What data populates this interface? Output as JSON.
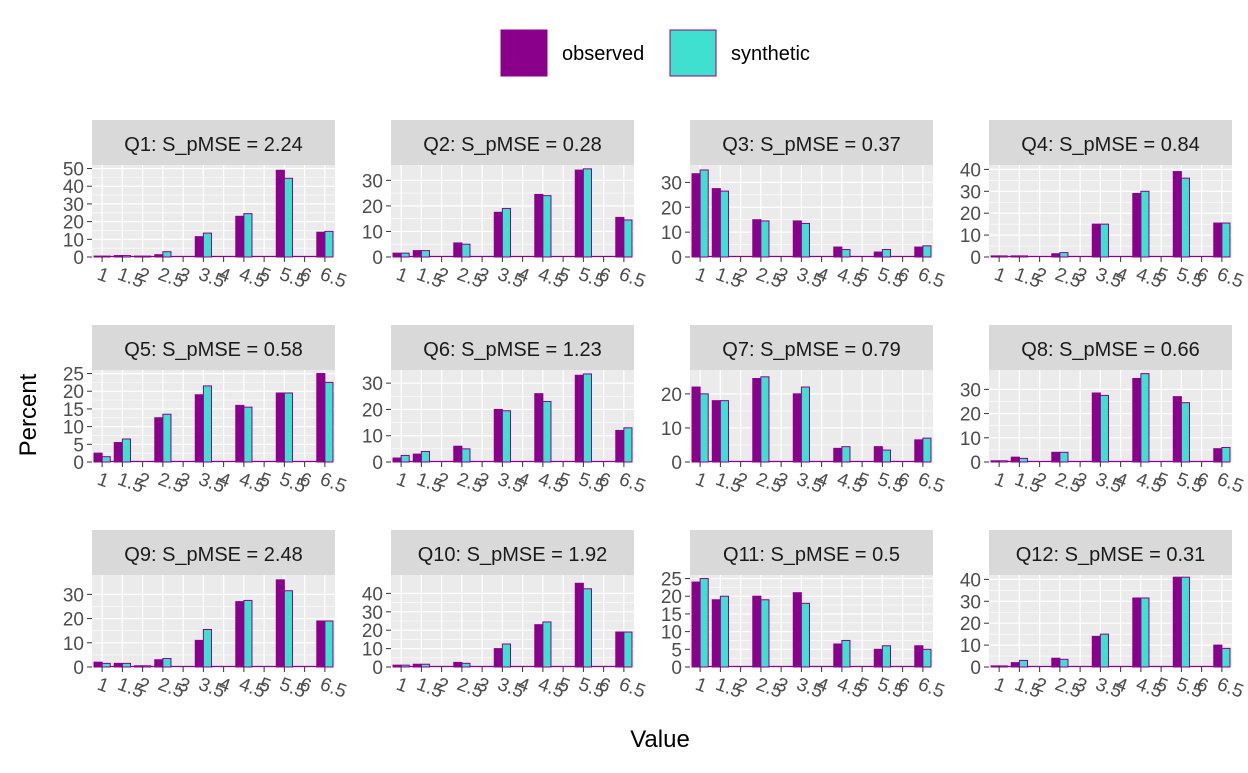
{
  "legend": {
    "position": "top",
    "items": [
      {
        "label": "observed",
        "color": "#8B008B"
      },
      {
        "label": "synthetic",
        "color": "#40E0D0"
      }
    ]
  },
  "xlabel": "Value",
  "ylabel": "Percent",
  "chart_data": {
    "type": "bar",
    "facet_layout": "3 rows x 4 columns",
    "x_ticks": [
      "1",
      "1.5",
      "2",
      "2.5",
      "3",
      "3.5",
      "4",
      "4.5",
      "5",
      "5.5",
      "6",
      "6.5"
    ],
    "x": [
      1,
      1.5,
      2,
      2.5,
      3,
      3.5,
      4,
      4.5,
      5,
      5.5,
      6,
      6.5
    ],
    "series_names": [
      "observed",
      "synthetic"
    ],
    "colors": {
      "observed": "#8B008B",
      "synthetic": "#40E0D0",
      "bar_outline": "#8B008B",
      "panel_bg": "#EBEBEB",
      "strip_bg": "#D9D9D9"
    },
    "grid": true,
    "panels": [
      {
        "title": "Q1: S_pMSE = 2.24",
        "ylim": [
          0,
          52
        ],
        "yticks": [
          0,
          10,
          20,
          30,
          40,
          50
        ],
        "observed": [
          0.5,
          0.8,
          0.5,
          1.3,
          11.5,
          23,
          0,
          49,
          0,
          14,
          0,
          0
        ],
        "synthetic": [
          0.5,
          0.8,
          0.5,
          3,
          13.5,
          24.5,
          0,
          44.5,
          0,
          14.5,
          0,
          0
        ],
        "x_order": [
          1,
          1.5,
          2,
          2.5,
          3.5,
          4.5,
          5,
          5.5,
          6,
          6.5,
          3,
          4
        ]
      },
      {
        "title": "Q2: S_pMSE = 0.28",
        "ylim": [
          0,
          36
        ],
        "yticks": [
          0,
          10,
          20,
          30
        ],
        "observed": [
          1.5,
          2.5,
          5.5,
          17.5,
          24.5,
          34,
          15.5
        ],
        "synthetic": [
          1.5,
          2.5,
          5,
          19,
          24,
          34.5,
          14.5
        ],
        "x_vals": [
          1,
          1.5,
          2.5,
          3.5,
          4.5,
          5.5,
          6.5
        ]
      },
      {
        "title": "Q3: S_pMSE = 0.37",
        "ylim": [
          0,
          37
        ],
        "yticks": [
          0,
          10,
          20,
          30
        ],
        "observed": [
          33.5,
          27.5,
          15,
          14.5,
          4,
          2,
          4
        ],
        "synthetic": [
          35,
          26.5,
          14.5,
          13.5,
          3,
          3,
          4.5
        ],
        "x_vals": [
          1,
          1.5,
          2.5,
          3.5,
          4.5,
          5.5,
          6.5
        ]
      },
      {
        "title": "Q4: S_pMSE = 0.84",
        "ylim": [
          0,
          42
        ],
        "yticks": [
          0,
          10,
          20,
          30,
          40
        ],
        "observed": [
          0.5,
          0.5,
          1.5,
          15,
          29,
          39,
          15.5
        ],
        "synthetic": [
          0.5,
          0.5,
          2,
          15,
          30,
          36,
          15.5
        ],
        "x_vals": [
          1,
          1.5,
          2.5,
          3.5,
          4.5,
          5.5,
          6.5
        ]
      },
      {
        "title": "Q5: S_pMSE = 0.58",
        "ylim": [
          0,
          26
        ],
        "yticks": [
          0,
          5,
          10,
          15,
          20,
          25
        ],
        "observed": [
          2.5,
          5.5,
          12.5,
          19,
          16,
          19.5,
          25
        ],
        "synthetic": [
          1.5,
          6.5,
          13.5,
          21.5,
          15.5,
          19.5,
          22.5
        ],
        "x_vals": [
          1,
          1.5,
          2.5,
          3.5,
          4.5,
          5.5,
          6.5
        ]
      },
      {
        "title": "Q6: S_pMSE = 1.23",
        "ylim": [
          0,
          35
        ],
        "yticks": [
          0,
          10,
          20,
          30
        ],
        "observed": [
          1.5,
          3,
          6,
          20,
          26,
          33,
          12
        ],
        "synthetic": [
          2.5,
          4,
          5,
          19.5,
          23,
          33.5,
          13
        ],
        "x_vals": [
          1,
          1.5,
          2.5,
          3.5,
          4.5,
          5.5,
          6.5
        ]
      },
      {
        "title": "Q7: S_pMSE = 0.79",
        "ylim": [
          0,
          27
        ],
        "yticks": [
          0,
          10,
          20
        ],
        "observed": [
          22,
          18,
          24.5,
          20,
          4,
          4.5,
          6.5
        ],
        "synthetic": [
          20,
          18,
          25,
          22,
          4.5,
          3.5,
          7
        ],
        "x_vals": [
          1,
          1.5,
          2.5,
          3.5,
          4.5,
          5.5,
          6.5
        ]
      },
      {
        "title": "Q8: S_pMSE = 0.66",
        "ylim": [
          0,
          38
        ],
        "yticks": [
          0,
          10,
          20,
          30
        ],
        "observed": [
          0.5,
          2,
          4,
          28.5,
          34.5,
          27,
          5.5
        ],
        "synthetic": [
          0.5,
          1.5,
          4,
          27.5,
          36.5,
          24.5,
          6
        ],
        "x_vals": [
          1,
          1.5,
          2.5,
          3.5,
          4.5,
          5.5,
          6.5
        ]
      },
      {
        "title": "Q9: S_pMSE = 2.48",
        "ylim": [
          0,
          38
        ],
        "yticks": [
          0,
          10,
          20,
          30
        ],
        "observed": [
          2,
          1.5,
          0.5,
          3,
          11,
          27,
          36,
          19
        ],
        "synthetic": [
          1.5,
          1.5,
          0.5,
          3.5,
          15.5,
          27.5,
          31.5,
          19
        ],
        "x_vals": [
          1,
          1.5,
          2,
          2.5,
          3.5,
          4.5,
          5.5,
          6.5
        ]
      },
      {
        "title": "Q10: S_pMSE = 1.92",
        "ylim": [
          0,
          50
        ],
        "yticks": [
          0,
          10,
          20,
          30,
          40
        ],
        "observed": [
          1,
          1.5,
          2.5,
          10,
          23,
          45.5,
          19
        ],
        "synthetic": [
          1,
          1.5,
          2,
          12.5,
          24.5,
          42.5,
          19
        ],
        "x_vals": [
          1,
          1.5,
          2.5,
          3.5,
          4.5,
          5.5,
          6.5
        ]
      },
      {
        "title": "Q11: S_pMSE = 0.5",
        "ylim": [
          0,
          26
        ],
        "yticks": [
          0,
          5,
          10,
          15,
          20,
          25
        ],
        "observed": [
          24,
          19,
          20,
          21,
          6.5,
          5,
          6
        ],
        "synthetic": [
          25,
          20,
          19,
          18,
          7.5,
          6,
          5
        ],
        "x_vals": [
          1,
          1.5,
          2.5,
          3.5,
          4.5,
          5.5,
          6.5
        ]
      },
      {
        "title": "Q12: S_pMSE = 0.31",
        "ylim": [
          0,
          42
        ],
        "yticks": [
          0,
          10,
          20,
          30,
          40
        ],
        "observed": [
          0.5,
          2,
          4,
          14,
          31.5,
          41,
          10
        ],
        "synthetic": [
          0.5,
          3,
          3.5,
          15,
          31.5,
          41,
          8.5
        ],
        "x_vals": [
          1,
          1.5,
          2.5,
          3.5,
          4.5,
          5.5,
          6.5
        ]
      }
    ]
  }
}
